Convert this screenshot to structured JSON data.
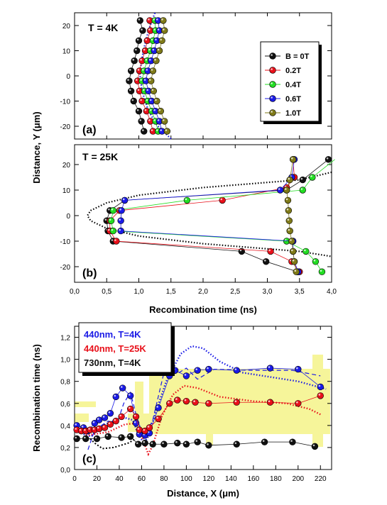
{
  "colors": {
    "black": "#111111",
    "red": "#e8101a",
    "green": "#22dd22",
    "blue": "#1a1ae6",
    "olive": "#7f7a18",
    "yellow_band": "#f6f59a"
  },
  "labels": {
    "y_axis_top": "Distance, Y (μm)",
    "x_axis_top": "Recombination time (ns)",
    "y_axis_bottom": "Recombination time (ns)",
    "x_axis_bottom": "Distance, X (μm)",
    "panel_a": "(a)",
    "panel_b": "(b)",
    "panel_c": "(c)",
    "temp_a": "T = 4K",
    "temp_b": "T = 25K"
  },
  "legend_field": {
    "title_entry": "B = 0T",
    "entries": [
      "B = 0T",
      "0.2T",
      "0.4T",
      "0.6T",
      "1.0T"
    ]
  },
  "legend_c": {
    "entries": [
      "440nm, T=4K",
      "440nm, T=25K",
      "730nm, T=4K"
    ]
  },
  "chart_data": [
    {
      "type": "scatter",
      "panel": "(a)",
      "annotation": "T = 4K",
      "xlim": [
        0,
        4
      ],
      "ylim": [
        -25,
        25
      ],
      "yticks": [
        -20,
        -10,
        0,
        10,
        20
      ],
      "series": [
        {
          "name": "B = 0T",
          "points": [
            [
              1.02,
              22
            ],
            [
              1.06,
              18
            ],
            [
              1.0,
              14
            ],
            [
              0.97,
              10
            ],
            [
              0.93,
              6
            ],
            [
              0.88,
              2
            ],
            [
              0.85,
              -2
            ],
            [
              0.88,
              -6
            ],
            [
              0.92,
              -10
            ],
            [
              1.0,
              -14
            ],
            [
              1.04,
              -18
            ],
            [
              1.08,
              -22
            ]
          ]
        },
        {
          "name": "0.2T",
          "points": [
            [
              1.17,
              22
            ],
            [
              1.18,
              18
            ],
            [
              1.13,
              14
            ],
            [
              1.1,
              10
            ],
            [
              1.05,
              6
            ],
            [
              1.01,
              2
            ],
            [
              0.98,
              -2
            ],
            [
              1.01,
              -6
            ],
            [
              1.05,
              -10
            ],
            [
              1.12,
              -14
            ],
            [
              1.18,
              -18
            ],
            [
              1.22,
              -22
            ]
          ]
        },
        {
          "name": "0.4T",
          "points": [
            [
              1.25,
              22
            ],
            [
              1.26,
              18
            ],
            [
              1.22,
              14
            ],
            [
              1.18,
              10
            ],
            [
              1.13,
              6
            ],
            [
              1.08,
              2
            ],
            [
              1.05,
              -2
            ],
            [
              1.09,
              -6
            ],
            [
              1.14,
              -10
            ],
            [
              1.2,
              -14
            ],
            [
              1.26,
              -18
            ],
            [
              1.3,
              -22
            ]
          ]
        },
        {
          "name": "0.6T",
          "points": [
            [
              1.3,
              22
            ],
            [
              1.32,
              18
            ],
            [
              1.28,
              14
            ],
            [
              1.24,
              10
            ],
            [
              1.19,
              6
            ],
            [
              1.14,
              2
            ],
            [
              1.11,
              -2
            ],
            [
              1.15,
              -6
            ],
            [
              1.2,
              -10
            ],
            [
              1.26,
              -14
            ],
            [
              1.32,
              -18
            ],
            [
              1.36,
              -22
            ]
          ]
        },
        {
          "name": "1.0T",
          "points": [
            [
              1.38,
              22
            ],
            [
              1.4,
              18
            ],
            [
              1.36,
              14
            ],
            [
              1.32,
              10
            ],
            [
              1.27,
              6
            ],
            [
              1.22,
              2
            ],
            [
              1.19,
              -2
            ],
            [
              1.23,
              -6
            ],
            [
              1.28,
              -10
            ],
            [
              1.34,
              -14
            ],
            [
              1.4,
              -18
            ],
            [
              1.44,
              -22
            ]
          ]
        }
      ],
      "fit_curve": [
        [
          1.25,
          25
        ],
        [
          1.15,
          18
        ],
        [
          1.07,
          10
        ],
        [
          1.02,
          2
        ],
        [
          1.02,
          0
        ],
        [
          1.05,
          -6
        ],
        [
          1.15,
          -14
        ],
        [
          1.3,
          -20
        ],
        [
          1.5,
          -25
        ]
      ]
    },
    {
      "type": "scatter",
      "panel": "(b)",
      "annotation": "T = 25K",
      "xlabel": "Recombination time (ns)",
      "xlim": [
        0,
        4
      ],
      "ylim": [
        -25,
        25
      ],
      "xticks": [
        "0,0",
        "0,5",
        "1,0",
        "1,5",
        "2,0",
        "2,5",
        "3,0",
        "3,5",
        "4,0"
      ],
      "yticks": [
        -20,
        -10,
        0,
        10,
        20
      ],
      "series": [
        {
          "name": "B = 0T",
          "points": [
            [
              3.95,
              22
            ],
            [
              3.55,
              14
            ],
            [
              3.3,
              10
            ],
            [
              0.78,
              6
            ],
            [
              0.55,
              2
            ],
            [
              0.5,
              -2
            ],
            [
              0.52,
              -6
            ],
            [
              0.6,
              -10
            ],
            [
              2.6,
              -14
            ],
            [
              2.98,
              -18
            ],
            [
              3.47,
              -22
            ]
          ]
        },
        {
          "name": "0.2T",
          "points": [
            [
              3.4,
              22
            ],
            [
              3.42,
              15
            ],
            [
              3.3,
              11
            ],
            [
              2.3,
              6
            ],
            [
              0.7,
              2
            ],
            [
              0.55,
              -2
            ],
            [
              0.55,
              -6
            ],
            [
              0.65,
              -10
            ],
            [
              3.05,
              -14
            ],
            [
              3.38,
              -18
            ],
            [
              3.5,
              -22
            ]
          ]
        },
        {
          "name": "0.4T",
          "points": [
            [
              4.05,
              22
            ],
            [
              3.7,
              15
            ],
            [
              3.55,
              10
            ],
            [
              1.75,
              6
            ],
            [
              0.6,
              2
            ],
            [
              0.57,
              -2
            ],
            [
              0.6,
              -6
            ],
            [
              3.3,
              -10
            ],
            [
              3.6,
              -14
            ],
            [
              3.75,
              -18
            ],
            [
              3.85,
              -22
            ]
          ]
        },
        {
          "name": "0.6T",
          "points": [
            [
              3.42,
              22
            ],
            [
              3.38,
              15
            ],
            [
              3.2,
              10
            ],
            [
              0.78,
              6
            ],
            [
              0.73,
              2
            ],
            [
              0.72,
              -2
            ],
            [
              0.72,
              -6
            ],
            [
              3.4,
              -10
            ],
            [
              3.4,
              -14
            ],
            [
              3.42,
              -18
            ],
            [
              3.48,
              -22
            ]
          ]
        },
        {
          "name": "1.0T",
          "points": [
            [
              3.4,
              22
            ],
            [
              3.35,
              14
            ],
            [
              3.3,
              10
            ],
            [
              3.32,
              6
            ],
            [
              3.33,
              2
            ],
            [
              3.34,
              -2
            ],
            [
              3.35,
              -6
            ],
            [
              3.38,
              -10
            ],
            [
              3.4,
              -14
            ],
            [
              3.42,
              -18
            ],
            [
              3.45,
              -22
            ]
          ]
        }
      ],
      "fit_curve": [
        [
          4.0,
          17
        ],
        [
          3.5,
          14
        ],
        [
          2.0,
          11
        ],
        [
          1.0,
          8
        ],
        [
          0.5,
          5
        ],
        [
          0.25,
          2
        ],
        [
          0.2,
          0
        ],
        [
          0.25,
          -2
        ],
        [
          0.5,
          -5
        ],
        [
          1.0,
          -8
        ],
        [
          2.0,
          -11
        ],
        [
          3.5,
          -14
        ],
        [
          4.0,
          -16
        ]
      ]
    },
    {
      "type": "line",
      "panel": "(c)",
      "xlabel": "Distance, X (μm)",
      "ylabel": "Recombination time (ns)",
      "xlim": [
        0,
        230
      ],
      "ylim": [
        0,
        1.3
      ],
      "xticks": [
        0,
        20,
        40,
        60,
        80,
        100,
        120,
        140,
        160,
        180,
        200,
        220
      ],
      "yticks": [
        "0,0",
        "0,2",
        "0,4",
        "0,6",
        "0,8",
        "1,0",
        "1,2"
      ],
      "series": [
        {
          "name": "440nm, T=4K",
          "points": [
            [
              2,
              0.4
            ],
            [
              8,
              0.38
            ],
            [
              12,
              0.35
            ],
            [
              18,
              0.42
            ],
            [
              22,
              0.45
            ],
            [
              27,
              0.47
            ],
            [
              32,
              0.51
            ],
            [
              37,
              0.66
            ],
            [
              43,
              0.74
            ],
            [
              50,
              0.67
            ],
            [
              55,
              0.42
            ],
            [
              58,
              0.32
            ],
            [
              63,
              0.31
            ],
            [
              67,
              0.33
            ],
            [
              75,
              0.56
            ],
            [
              85,
              0.85
            ],
            [
              90,
              0.9
            ],
            [
              100,
              0.85
            ],
            [
              110,
              0.9
            ],
            [
              120,
              0.91
            ],
            [
              145,
              0.9
            ],
            [
              175,
              0.92
            ],
            [
              200,
              0.91
            ],
            [
              220,
              0.75
            ]
          ]
        },
        {
          "name": "440nm, T=25K",
          "points": [
            [
              2,
              0.36
            ],
            [
              6,
              0.35
            ],
            [
              10,
              0.35
            ],
            [
              14,
              0.36
            ],
            [
              18,
              0.36
            ],
            [
              22,
              0.37
            ],
            [
              27,
              0.38
            ],
            [
              32,
              0.41
            ],
            [
              37,
              0.44
            ],
            [
              42,
              0.48
            ],
            [
              50,
              0.55
            ],
            [
              55,
              0.48
            ],
            [
              58,
              0.36
            ],
            [
              63,
              0.35
            ],
            [
              67,
              0.38
            ],
            [
              75,
              0.46
            ],
            [
              85,
              0.6
            ],
            [
              92,
              0.63
            ],
            [
              100,
              0.62
            ],
            [
              108,
              0.61
            ],
            [
              120,
              0.6
            ],
            [
              145,
              0.61
            ],
            [
              175,
              0.61
            ],
            [
              200,
              0.6
            ],
            [
              220,
              0.67
            ]
          ]
        },
        {
          "name": "730nm, T=4K",
          "points": [
            [
              2,
              0.28
            ],
            [
              10,
              0.28
            ],
            [
              20,
              0.28
            ],
            [
              30,
              0.3
            ],
            [
              42,
              0.29
            ],
            [
              50,
              0.3
            ],
            [
              57,
              0.23
            ],
            [
              63,
              0.24
            ],
            [
              70,
              0.23
            ],
            [
              80,
              0.23
            ],
            [
              92,
              0.24
            ],
            [
              100,
              0.23
            ],
            [
              110,
              0.25
            ],
            [
              120,
              0.22
            ],
            [
              145,
              0.23
            ],
            [
              170,
              0.25
            ],
            [
              195,
              0.25
            ],
            [
              215,
              0.21
            ]
          ]
        }
      ]
    }
  ]
}
